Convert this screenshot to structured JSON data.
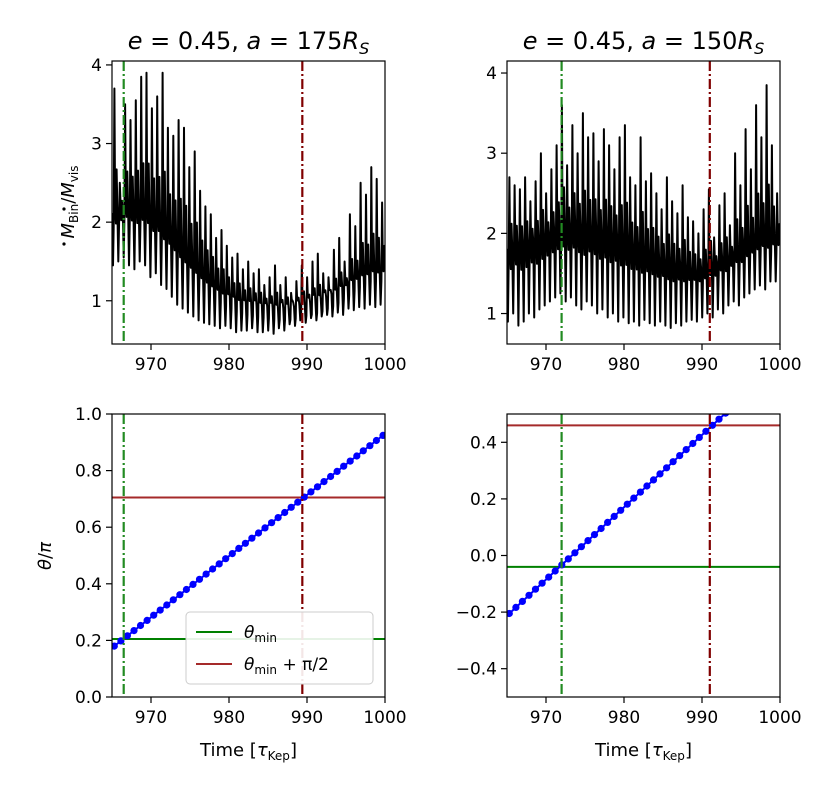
{
  "chart_data": [
    {
      "id": "tl",
      "type": "line",
      "title": "e = 0.45, a = 175R_S",
      "title_parts": {
        "e": "e",
        "eq1": " = 0.45, ",
        "a": "a",
        "eq2": " = 175",
        "R": "R",
        "sub": "S"
      },
      "xlabel": "",
      "ylabel": "Ṁ_Bin/Ṁ_vis",
      "ylabel_parts": {
        "M1": "M",
        "sub1": "Bin",
        "slash": "/",
        "M2": "M",
        "sub2": "vis"
      },
      "xlim": [
        965,
        1000
      ],
      "ylim": [
        0.45,
        4.05
      ],
      "xticks": [
        970,
        980,
        990,
        1000
      ],
      "yticks": [
        1,
        2,
        3,
        4
      ],
      "vlines": [
        {
          "x": 966.5,
          "color": "#228b22"
        },
        {
          "x": 989.4,
          "color": "#800000"
        }
      ],
      "series": [
        {
          "name": "accretion-rate",
          "color": "#000000",
          "baseline": [
            2.1,
            2.2,
            2.15,
            2.0,
            1.8,
            1.55,
            1.3,
            1.1,
            1.0,
            0.95,
            0.92,
            0.9,
            0.95,
            1.0,
            1.1,
            1.25,
            1.4,
            1.4
          ],
          "peaks": [
            3.7,
            2.5,
            3.5,
            3.3,
            3.55,
            3.85,
            3.9,
            3.45,
            3.6,
            3.9,
            3.2,
            3.1,
            3.3,
            3.2,
            2.7,
            2.9,
            2.4,
            2.2,
            2.1,
            1.8,
            1.9,
            1.7,
            1.55,
            1.6,
            1.4,
            1.5,
            1.35,
            1.4,
            1.2,
            1.3,
            1.45,
            1.2,
            1.3,
            1.1,
            1.25,
            1.45,
            1.3,
            1.5,
            1.6,
            1.35,
            1.3,
            1.65,
            1.8,
            1.5,
            2.1,
            1.95,
            2.5,
            2.35,
            2.7,
            2.55,
            2.25
          ],
          "troughs": [
            1.45,
            1.5,
            1.55,
            1.45,
            1.4,
            1.5,
            1.45,
            1.3,
            1.35,
            1.2,
            1.15,
            1.05,
            0.95,
            0.9,
            0.85,
            0.8,
            0.75,
            0.72,
            0.7,
            0.68,
            0.65,
            0.68,
            0.65,
            0.6,
            0.62,
            0.62,
            0.65,
            0.6,
            0.6,
            0.62,
            0.58,
            0.65,
            0.62,
            0.7,
            0.68,
            0.75,
            0.72,
            0.78,
            0.75,
            0.8,
            0.82,
            0.8,
            0.85,
            0.82,
            0.9,
            0.88,
            0.92,
            0.9,
            0.95,
            0.92,
            0.95
          ]
        }
      ]
    },
    {
      "id": "tr",
      "type": "line",
      "title": "e = 0.45, a = 150R_S",
      "title_parts": {
        "e": "e",
        "eq1": " = 0.45, ",
        "a": "a",
        "eq2": " = 150",
        "R": "R",
        "sub": "S"
      },
      "xlabel": "",
      "ylabel": "",
      "xlim": [
        965,
        1000
      ],
      "ylim": [
        0.62,
        4.15
      ],
      "xticks": [
        970,
        980,
        990,
        1000
      ],
      "yticks": [
        1,
        2,
        3,
        4
      ],
      "vlines": [
        {
          "x": 972.0,
          "color": "#228b22"
        },
        {
          "x": 991.0,
          "color": "#800000"
        }
      ],
      "series": [
        {
          "name": "accretion-rate",
          "color": "#000000",
          "baseline": [
            1.8,
            1.85,
            1.9,
            2.0,
            2.05,
            2.0,
            1.95,
            1.9,
            1.8,
            1.7,
            1.6,
            1.55,
            1.5,
            1.6,
            1.7,
            1.85,
            1.95,
            1.9
          ],
          "peaks": [
            2.7,
            2.6,
            2.55,
            2.7,
            2.4,
            2.65,
            3.0,
            2.5,
            2.8,
            3.1,
            3.6,
            2.85,
            3.35,
            3.0,
            3.5,
            3.2,
            3.25,
            2.9,
            3.3,
            3.1,
            2.8,
            3.2,
            3.35,
            2.7,
            2.6,
            3.2,
            2.65,
            2.75,
            2.5,
            2.3,
            2.7,
            2.4,
            2.25,
            2.6,
            2.2,
            2.15,
            2.0,
            2.3,
            2.55,
            1.95,
            2.35,
            2.5,
            2.1,
            3.0,
            2.6,
            3.3,
            2.8,
            3.6,
            3.2,
            3.85,
            3.1,
            2.5
          ],
          "troughs": [
            0.9,
            1.0,
            0.85,
            0.9,
            1.0,
            0.95,
            1.05,
            1.1,
            1.15,
            1.2,
            1.25,
            1.15,
            1.2,
            1.1,
            1.05,
            1.15,
            1.1,
            1.0,
            1.05,
            0.95,
            1.0,
            0.9,
            0.95,
            0.88,
            0.9,
            0.85,
            0.92,
            0.88,
            0.85,
            0.9,
            0.85,
            0.82,
            0.88,
            0.85,
            0.9,
            0.92,
            0.9,
            0.95,
            1.0,
            0.95,
            1.05,
            1.0,
            1.1,
            1.15,
            1.1,
            1.2,
            1.25,
            1.3,
            1.35,
            1.3,
            1.4,
            1.4
          ]
        }
      ]
    },
    {
      "id": "bl",
      "type": "line",
      "xlabel": "Time [τ_Kep]",
      "xlabel_parts": {
        "text": "Time [",
        "tau": "τ",
        "sub": "Kep",
        "close": "]"
      },
      "ylabel": "θ/π",
      "ylabel_parts": {
        "theta": "θ",
        "slash": "/",
        "pi": "π"
      },
      "xlim": [
        965,
        1000
      ],
      "ylim": [
        0.0,
        1.0
      ],
      "xticks": [
        970,
        980,
        990,
        1000
      ],
      "ytick_labels": [
        "0.0",
        "0.2",
        "0.4",
        "0.6",
        "0.8",
        "1.0"
      ],
      "yticks": [
        0.0,
        0.2,
        0.4,
        0.6,
        0.8,
        1.0
      ],
      "vlines": [
        {
          "x": 966.5,
          "color": "#228b22"
        },
        {
          "x": 989.4,
          "color": "#800000"
        }
      ],
      "hlines": [
        {
          "y": 0.205,
          "color": "#008000",
          "name": "theta-min-line"
        },
        {
          "y": 0.705,
          "color": "#a52a2a",
          "name": "theta-min-plus-half-pi-line"
        }
      ],
      "series": [
        {
          "name": "theta-points",
          "color": "#0000ff",
          "x_start": 965.3,
          "x_end": 1000.0,
          "x_step": 0.84,
          "y_start": 0.18,
          "y_end": 0.93
        }
      ],
      "legend": {
        "position": "lower-center",
        "entries": [
          {
            "label": "θ_min",
            "parts": {
              "theta": "θ",
              "sub": "min",
              "rest": ""
            },
            "color": "#008000"
          },
          {
            "label": "θ_min + π/2",
            "parts": {
              "theta": "θ",
              "sub": "min",
              "rest": " + π/2"
            },
            "color": "#a52a2a"
          }
        ]
      }
    },
    {
      "id": "br",
      "type": "line",
      "xlabel": "Time [τ_Kep]",
      "xlabel_parts": {
        "text": "Time [",
        "tau": "τ",
        "sub": "Kep",
        "close": "]"
      },
      "ylabel": "",
      "xlim": [
        965,
        1000
      ],
      "ylim": [
        -0.5,
        0.5
      ],
      "xticks": [
        970,
        980,
        990,
        1000
      ],
      "ytick_labels": [
        "−0.4",
        "−0.2",
        "0.0",
        "0.2",
        "0.4"
      ],
      "yticks": [
        -0.4,
        -0.2,
        0.0,
        0.2,
        0.4
      ],
      "vlines": [
        {
          "x": 972.0,
          "color": "#228b22"
        },
        {
          "x": 991.0,
          "color": "#800000"
        }
      ],
      "hlines": [
        {
          "y": -0.04,
          "color": "#008000",
          "name": "theta-min-line"
        },
        {
          "y": 0.46,
          "color": "#a52a2a",
          "name": "theta-min-plus-half-pi-line"
        }
      ],
      "series": [
        {
          "name": "theta-points",
          "color": "#0000ff",
          "x_start": 965.3,
          "x_end": 992.9,
          "x_step": 0.84,
          "y_start": -0.205,
          "y_end": 0.5
        }
      ]
    }
  ]
}
